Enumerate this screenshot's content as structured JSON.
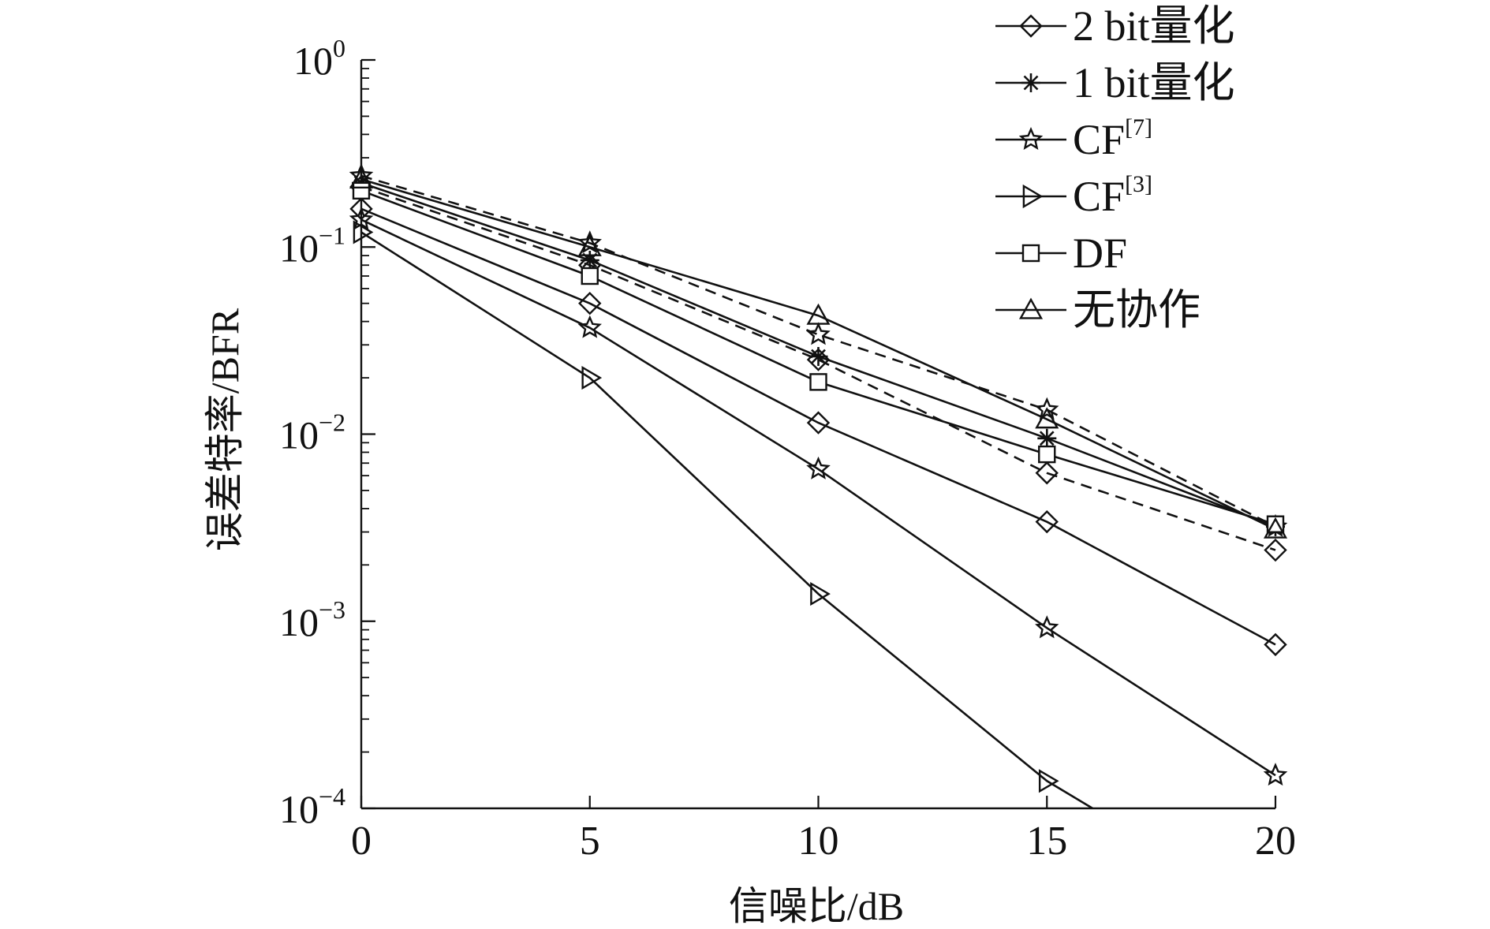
{
  "chart_data": {
    "type": "line",
    "title": "",
    "xlabel": "信噪比/dB",
    "ylabel": "误差特率/BFR",
    "yscale": "log",
    "xlim": [
      0,
      20
    ],
    "ylim": [
      0.0001,
      1
    ],
    "xticks": [
      0,
      5,
      10,
      15,
      20
    ],
    "xtick_labels": [
      "0",
      "5",
      "10",
      "15",
      "20"
    ],
    "yticks": [
      1,
      0.1,
      0.01,
      0.001,
      0.0001
    ],
    "ytick_labels": [
      {
        "base": "10",
        "exp": "0"
      },
      {
        "base": "10",
        "exp": "−1"
      },
      {
        "base": "10",
        "exp": "−2"
      },
      {
        "base": "10",
        "exp": "−3"
      },
      {
        "base": "10",
        "exp": "−4"
      }
    ],
    "grid": false,
    "legend_position": "top-right",
    "colors": {
      "line": "#111111",
      "background": "#ffffff"
    },
    "series": [
      {
        "name": "2 bit量化",
        "legend_text": "2 bit量化",
        "legend_sup": "",
        "marker": "diamond",
        "curves": [
          {
            "dash": false,
            "x": [
              0,
              5,
              10,
              15,
              20
            ],
            "y": [
              0.16,
              0.05,
              0.0115,
              0.0034,
              0.00075
            ]
          },
          {
            "dash": true,
            "x": [
              0,
              5,
              10,
              15,
              20
            ],
            "y": [
              0.21,
              0.08,
              0.025,
              0.0062,
              0.0024
            ]
          }
        ]
      },
      {
        "name": "1 bit量化",
        "legend_text": "1 bit量化",
        "legend_sup": "",
        "marker": "asterisk",
        "curves": [
          {
            "dash": false,
            "x": [
              0,
              5,
              10,
              15,
              20
            ],
            "y": [
              0.22,
              0.085,
              0.026,
              0.0095,
              0.0032
            ]
          }
        ]
      },
      {
        "name": "CF[7]",
        "legend_text": "CF",
        "legend_sup": "[7]",
        "marker": "star",
        "curves": [
          {
            "dash": false,
            "x": [
              0,
              5,
              10,
              15,
              20
            ],
            "y": [
              0.14,
              0.037,
              0.0065,
              0.00092,
              0.00015
            ]
          },
          {
            "dash": true,
            "x": [
              0,
              5,
              10,
              15,
              20
            ],
            "y": [
              0.24,
              0.105,
              0.034,
              0.0135,
              0.0032
            ]
          }
        ]
      },
      {
        "name": "CF[3]",
        "legend_text": "CF",
        "legend_sup": "[3]",
        "marker": "triangle-right",
        "curves": [
          {
            "dash": false,
            "x": [
              0,
              5,
              10,
              15,
              16
            ],
            "y": [
              0.12,
              0.02,
              0.0014,
              0.00014,
              0.0001
            ]
          }
        ]
      },
      {
        "name": "DF",
        "legend_text": "DF",
        "legend_sup": "",
        "marker": "square",
        "curves": [
          {
            "dash": false,
            "x": [
              0,
              5,
              10,
              15,
              20
            ],
            "y": [
              0.2,
              0.07,
              0.019,
              0.0078,
              0.0033
            ]
          }
        ]
      },
      {
        "name": "无协作",
        "legend_text": "无协作",
        "legend_sup": "",
        "marker": "triangle-up",
        "curves": [
          {
            "dash": false,
            "x": [
              0,
              5,
              10,
              15,
              20
            ],
            "y": [
              0.23,
              0.1,
              0.043,
              0.012,
              0.0031
            ]
          }
        ]
      }
    ]
  }
}
